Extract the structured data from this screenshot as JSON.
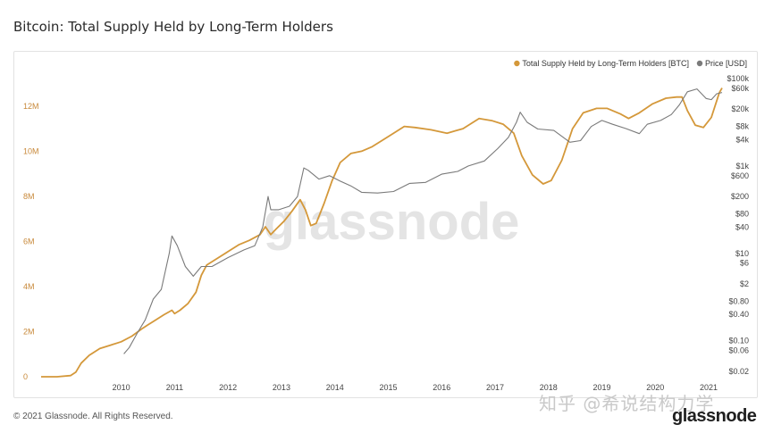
{
  "page": {
    "title": "Bitcoin: Total Supply Held by Long-Term Holders",
    "copyright": "© 2021 Glassnode. All Rights Reserved.",
    "watermark_center": "glassnode",
    "watermark_zh": "知乎 @希说结构力学",
    "logo": "glassnode"
  },
  "chart_data": {
    "type": "line",
    "title": "Bitcoin: Total Supply Held by Long-Term Holders",
    "legend_position": "top-right",
    "grid": false,
    "x_ticks": [
      "2010",
      "2011",
      "2012",
      "2013",
      "2014",
      "2015",
      "2016",
      "2017",
      "2018",
      "2019",
      "2020",
      "2021"
    ],
    "xlim": [
      2009.0,
      2021.75
    ],
    "y_left": {
      "label": "Total Supply Held by Long-Term Holders [BTC]",
      "ticks": [
        "0",
        "2M",
        "4M",
        "6M",
        "8M",
        "10M",
        "12M"
      ],
      "ylim": [
        0,
        13300000
      ]
    },
    "y_right": {
      "label": "Price [USD]",
      "scale": "log",
      "ticks": [
        "$100k",
        "$60k",
        "$20k",
        "$8k",
        "$4k",
        "$1k",
        "$600",
        "$200",
        "$80",
        "$40",
        "$10",
        "$6",
        "$2",
        "$0.80",
        "$0.40",
        "$0.10",
        "$0.06",
        "$0.02"
      ],
      "ylim": [
        0.015,
        110000
      ]
    },
    "series": [
      {
        "name": "Total Supply Held by Long-Term Holders [BTC]",
        "axis": "left",
        "color": "#d4983a",
        "points": [
          [
            2009.0,
            0
          ],
          [
            2009.3,
            0
          ],
          [
            2009.55,
            50000
          ],
          [
            2009.65,
            200000
          ],
          [
            2009.75,
            600000
          ],
          [
            2009.9,
            950000
          ],
          [
            2010.1,
            1250000
          ],
          [
            2010.3,
            1400000
          ],
          [
            2010.5,
            1550000
          ],
          [
            2010.7,
            1800000
          ],
          [
            2010.9,
            2150000
          ],
          [
            2011.0,
            2300000
          ],
          [
            2011.1,
            2450000
          ],
          [
            2011.3,
            2750000
          ],
          [
            2011.45,
            2950000
          ],
          [
            2011.5,
            2800000
          ],
          [
            2011.6,
            2950000
          ],
          [
            2011.75,
            3250000
          ],
          [
            2011.9,
            3750000
          ],
          [
            2012.0,
            4500000
          ],
          [
            2012.1,
            4950000
          ],
          [
            2012.3,
            5250000
          ],
          [
            2012.5,
            5550000
          ],
          [
            2012.7,
            5850000
          ],
          [
            2012.9,
            6050000
          ],
          [
            2013.1,
            6300000
          ],
          [
            2013.2,
            6650000
          ],
          [
            2013.3,
            6300000
          ],
          [
            2013.4,
            6550000
          ],
          [
            2013.55,
            6900000
          ],
          [
            2013.7,
            7350000
          ],
          [
            2013.85,
            7850000
          ],
          [
            2013.95,
            7400000
          ],
          [
            2014.05,
            6700000
          ],
          [
            2014.15,
            6800000
          ],
          [
            2014.3,
            7700000
          ],
          [
            2014.45,
            8700000
          ],
          [
            2014.6,
            9500000
          ],
          [
            2014.8,
            9900000
          ],
          [
            2015.0,
            10000000
          ],
          [
            2015.2,
            10200000
          ],
          [
            2015.4,
            10500000
          ],
          [
            2015.6,
            10800000
          ],
          [
            2015.8,
            11100000
          ],
          [
            2016.0,
            11050000
          ],
          [
            2016.3,
            10950000
          ],
          [
            2016.6,
            10800000
          ],
          [
            2016.9,
            11000000
          ],
          [
            2017.2,
            11450000
          ],
          [
            2017.45,
            11350000
          ],
          [
            2017.65,
            11200000
          ],
          [
            2017.85,
            10800000
          ],
          [
            2018.0,
            9800000
          ],
          [
            2018.2,
            8950000
          ],
          [
            2018.4,
            8550000
          ],
          [
            2018.55,
            8700000
          ],
          [
            2018.75,
            9600000
          ],
          [
            2018.95,
            11000000
          ],
          [
            2019.15,
            11700000
          ],
          [
            2019.4,
            11900000
          ],
          [
            2019.6,
            11900000
          ],
          [
            2019.85,
            11650000
          ],
          [
            2020.0,
            11450000
          ],
          [
            2020.2,
            11700000
          ],
          [
            2020.45,
            12100000
          ],
          [
            2020.7,
            12350000
          ],
          [
            2020.9,
            12400000
          ],
          [
            2021.0,
            12400000
          ],
          [
            2021.1,
            11800000
          ],
          [
            2021.25,
            11150000
          ],
          [
            2021.4,
            11050000
          ],
          [
            2021.55,
            11500000
          ],
          [
            2021.7,
            12600000
          ],
          [
            2021.75,
            12800000
          ]
        ]
      },
      {
        "name": "Price [USD]",
        "axis": "right",
        "color": "#7a7a7a",
        "points": [
          [
            2010.55,
            0.05
          ],
          [
            2010.65,
            0.07
          ],
          [
            2010.8,
            0.15
          ],
          [
            2010.95,
            0.3
          ],
          [
            2011.1,
            0.9
          ],
          [
            2011.25,
            1.5
          ],
          [
            2011.4,
            10
          ],
          [
            2011.45,
            25
          ],
          [
            2011.55,
            15
          ],
          [
            2011.7,
            5
          ],
          [
            2011.85,
            3
          ],
          [
            2012.0,
            5
          ],
          [
            2012.2,
            5
          ],
          [
            2012.5,
            8
          ],
          [
            2012.8,
            12
          ],
          [
            2013.0,
            15
          ],
          [
            2013.15,
            40
          ],
          [
            2013.25,
            200
          ],
          [
            2013.3,
            100
          ],
          [
            2013.45,
            100
          ],
          [
            2013.65,
            120
          ],
          [
            2013.8,
            200
          ],
          [
            2013.92,
            900
          ],
          [
            2014.0,
            800
          ],
          [
            2014.2,
            500
          ],
          [
            2014.4,
            600
          ],
          [
            2014.6,
            450
          ],
          [
            2014.8,
            350
          ],
          [
            2015.0,
            250
          ],
          [
            2015.3,
            240
          ],
          [
            2015.6,
            260
          ],
          [
            2015.9,
            400
          ],
          [
            2016.2,
            420
          ],
          [
            2016.5,
            650
          ],
          [
            2016.8,
            750
          ],
          [
            2017.0,
            1000
          ],
          [
            2017.3,
            1300
          ],
          [
            2017.55,
            2500
          ],
          [
            2017.75,
            4500
          ],
          [
            2017.9,
            10000
          ],
          [
            2017.97,
            17000
          ],
          [
            2018.1,
            10000
          ],
          [
            2018.3,
            7000
          ],
          [
            2018.6,
            6500
          ],
          [
            2018.9,
            3500
          ],
          [
            2019.1,
            3800
          ],
          [
            2019.3,
            8000
          ],
          [
            2019.5,
            11000
          ],
          [
            2019.7,
            9000
          ],
          [
            2019.95,
            7200
          ],
          [
            2020.2,
            5500
          ],
          [
            2020.35,
            9000
          ],
          [
            2020.6,
            11000
          ],
          [
            2020.8,
            15000
          ],
          [
            2020.95,
            25000
          ],
          [
            2021.1,
            50000
          ],
          [
            2021.28,
            58000
          ],
          [
            2021.45,
            35000
          ],
          [
            2021.55,
            33000
          ],
          [
            2021.65,
            45000
          ],
          [
            2021.75,
            48000
          ]
        ]
      }
    ]
  }
}
